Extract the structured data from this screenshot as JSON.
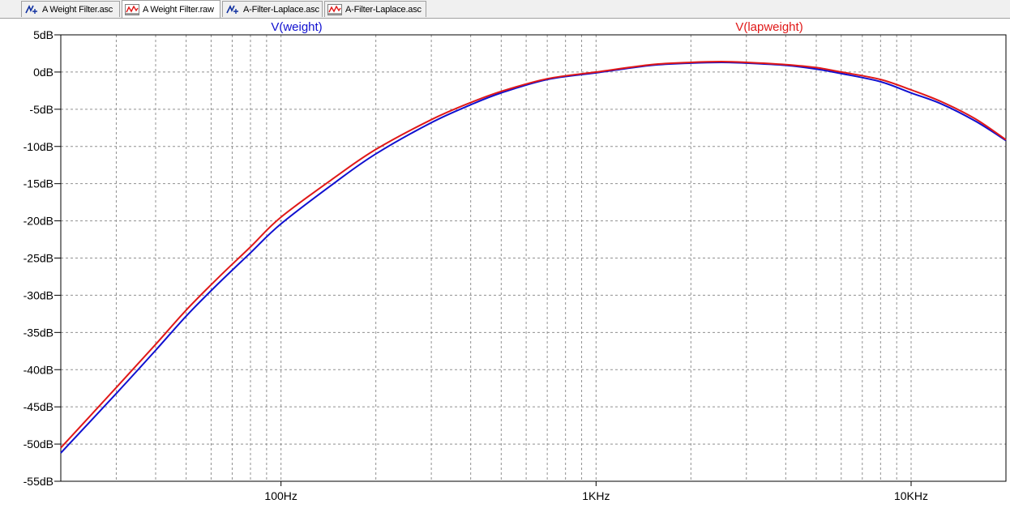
{
  "tabs": [
    {
      "label": "A Weight Filter.asc",
      "icon": "schematic-icon",
      "active": false
    },
    {
      "label": "A Weight Filter.raw",
      "icon": "waveform-icon",
      "active": true
    },
    {
      "label": "A-Filter-Laplace.asc",
      "icon": "schematic-icon",
      "active": false
    },
    {
      "label": "A-Filter-Laplace.asc",
      "icon": "waveform-icon",
      "active": false
    }
  ],
  "colors": {
    "weight": "#1010d0",
    "lapweight": "#e01818",
    "grid": "#909090",
    "axis": "#000000"
  },
  "chart_data": {
    "type": "line",
    "title": "",
    "xlabel": "",
    "ylabel": "",
    "xscale": "log",
    "xlim": [
      20,
      20000
    ],
    "ylim": [
      -55,
      5
    ],
    "grid": true,
    "legend": "top",
    "y_ticks": [
      "5dB",
      "0dB",
      "-5dB",
      "-10dB",
      "-15dB",
      "-20dB",
      "-25dB",
      "-30dB",
      "-35dB",
      "-40dB",
      "-45dB",
      "-50dB",
      "-55dB"
    ],
    "x_ticks": [
      {
        "value": 100,
        "label": "100Hz"
      },
      {
        "value": 1000,
        "label": "1KHz"
      },
      {
        "value": 10000,
        "label": "10KHz"
      }
    ],
    "series": [
      {
        "name": "V(weight)",
        "x": [
          20,
          30,
          40,
          50,
          63,
          80,
          100,
          150,
          200,
          300,
          400,
          500,
          700,
          1000,
          1500,
          2000,
          2500,
          3000,
          4000,
          5000,
          6000,
          8000,
          10000,
          12500,
          16000,
          20000
        ],
        "y": [
          -51.2,
          -43.2,
          -37.4,
          -32.8,
          -28.5,
          -24.3,
          -20.4,
          -14.7,
          -11.0,
          -6.8,
          -4.4,
          -2.8,
          -1.0,
          -0.1,
          0.9,
          1.2,
          1.3,
          1.2,
          0.9,
          0.4,
          -0.2,
          -1.3,
          -2.8,
          -4.3,
          -6.6,
          -9.2
        ]
      },
      {
        "name": "V(lapweight)",
        "x": [
          20,
          30,
          40,
          50,
          63,
          80,
          100,
          150,
          200,
          300,
          400,
          500,
          700,
          1000,
          1500,
          2000,
          2500,
          3000,
          4000,
          5000,
          6000,
          8000,
          10000,
          12500,
          16000,
          20000
        ],
        "y": [
          -50.5,
          -42.4,
          -36.6,
          -32.0,
          -27.7,
          -23.5,
          -19.5,
          -14.0,
          -10.4,
          -6.4,
          -4.1,
          -2.6,
          -0.9,
          0.0,
          1.0,
          1.3,
          1.4,
          1.3,
          1.0,
          0.6,
          0.0,
          -1.0,
          -2.4,
          -4.0,
          -6.3,
          -9.1
        ]
      }
    ]
  }
}
